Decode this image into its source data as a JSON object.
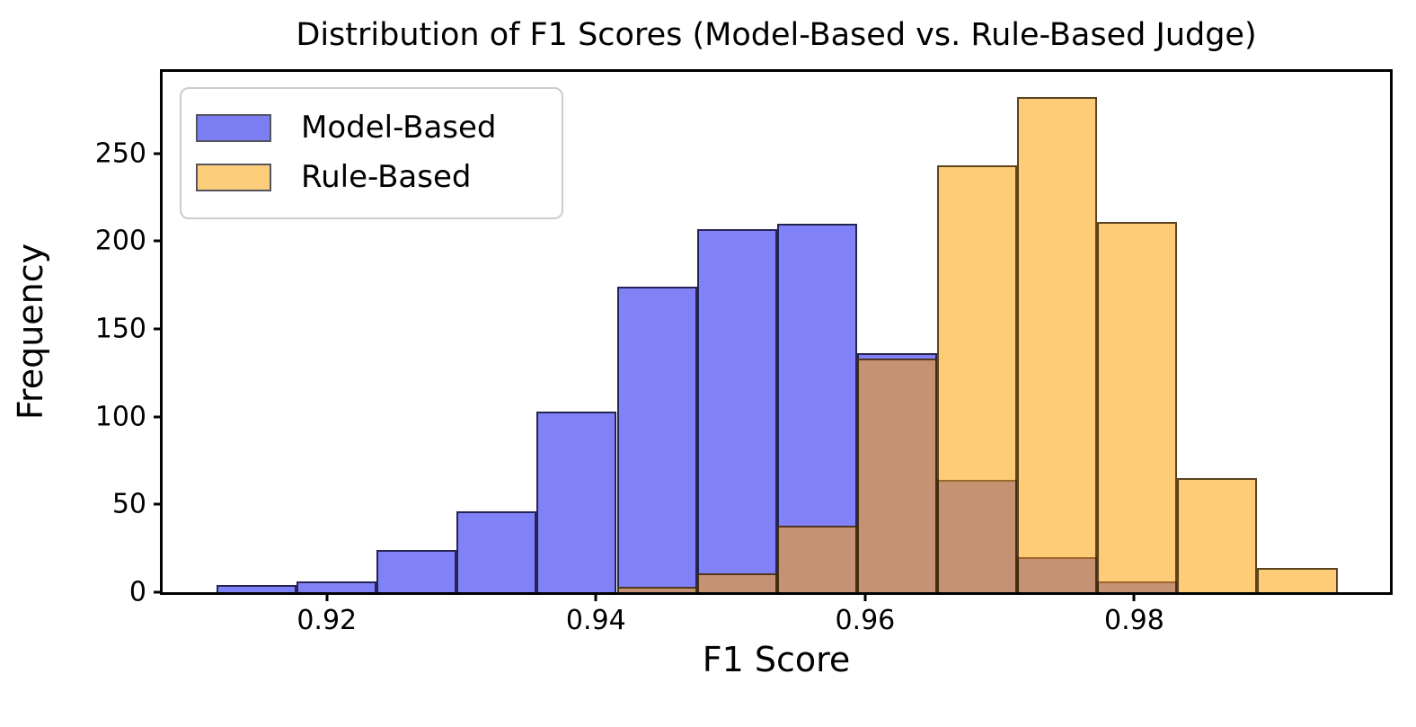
{
  "chart_data": {
    "type": "bar",
    "variant": "overlapping-histogram",
    "title": "Distribution of F1 Scores (Model-Based vs. Rule-Based Judge)",
    "xlabel": "F1 Score",
    "ylabel": "Frequency",
    "grid": false,
    "legend_position": "upper left",
    "bin_edges": [
      0.9118,
      0.91775,
      0.9237,
      0.92965,
      0.9356,
      0.94155,
      0.9475,
      0.95345,
      0.9594,
      0.96535,
      0.9713,
      0.97725,
      0.9832,
      0.98915,
      0.9951
    ],
    "series": [
      {
        "name": "Model-Based",
        "values": [
          4,
          6,
          24,
          46,
          103,
          174,
          207,
          210,
          136,
          64,
          20,
          6,
          0,
          0
        ],
        "color": "#7b7ef2",
        "fill_rgba": "rgba(25,28,240,0.55)",
        "edge_rgba": "rgba(10,10,40,0.78)"
      },
      {
        "name": "Rule-Based",
        "values": [
          0,
          0,
          0,
          0,
          0,
          3,
          11,
          38,
          133,
          243,
          282,
          211,
          65,
          14
        ],
        "color": "#fccd7a",
        "fill_rgba": "rgba(253,160,8,0.55)",
        "edge_rgba": "rgba(45,30,5,0.78)"
      }
    ],
    "xlim": [
      0.9078,
      0.999
    ],
    "ylim": [
      0,
      296.4
    ],
    "xticks": [
      0.92,
      0.94,
      0.96,
      0.98
    ],
    "xtick_labels": [
      "0.92",
      "0.94",
      "0.96",
      "0.98"
    ],
    "yticks": [
      0,
      50,
      100,
      150,
      200,
      250
    ],
    "ytick_labels": [
      "0",
      "50",
      "100",
      "150",
      "200",
      "250"
    ]
  }
}
